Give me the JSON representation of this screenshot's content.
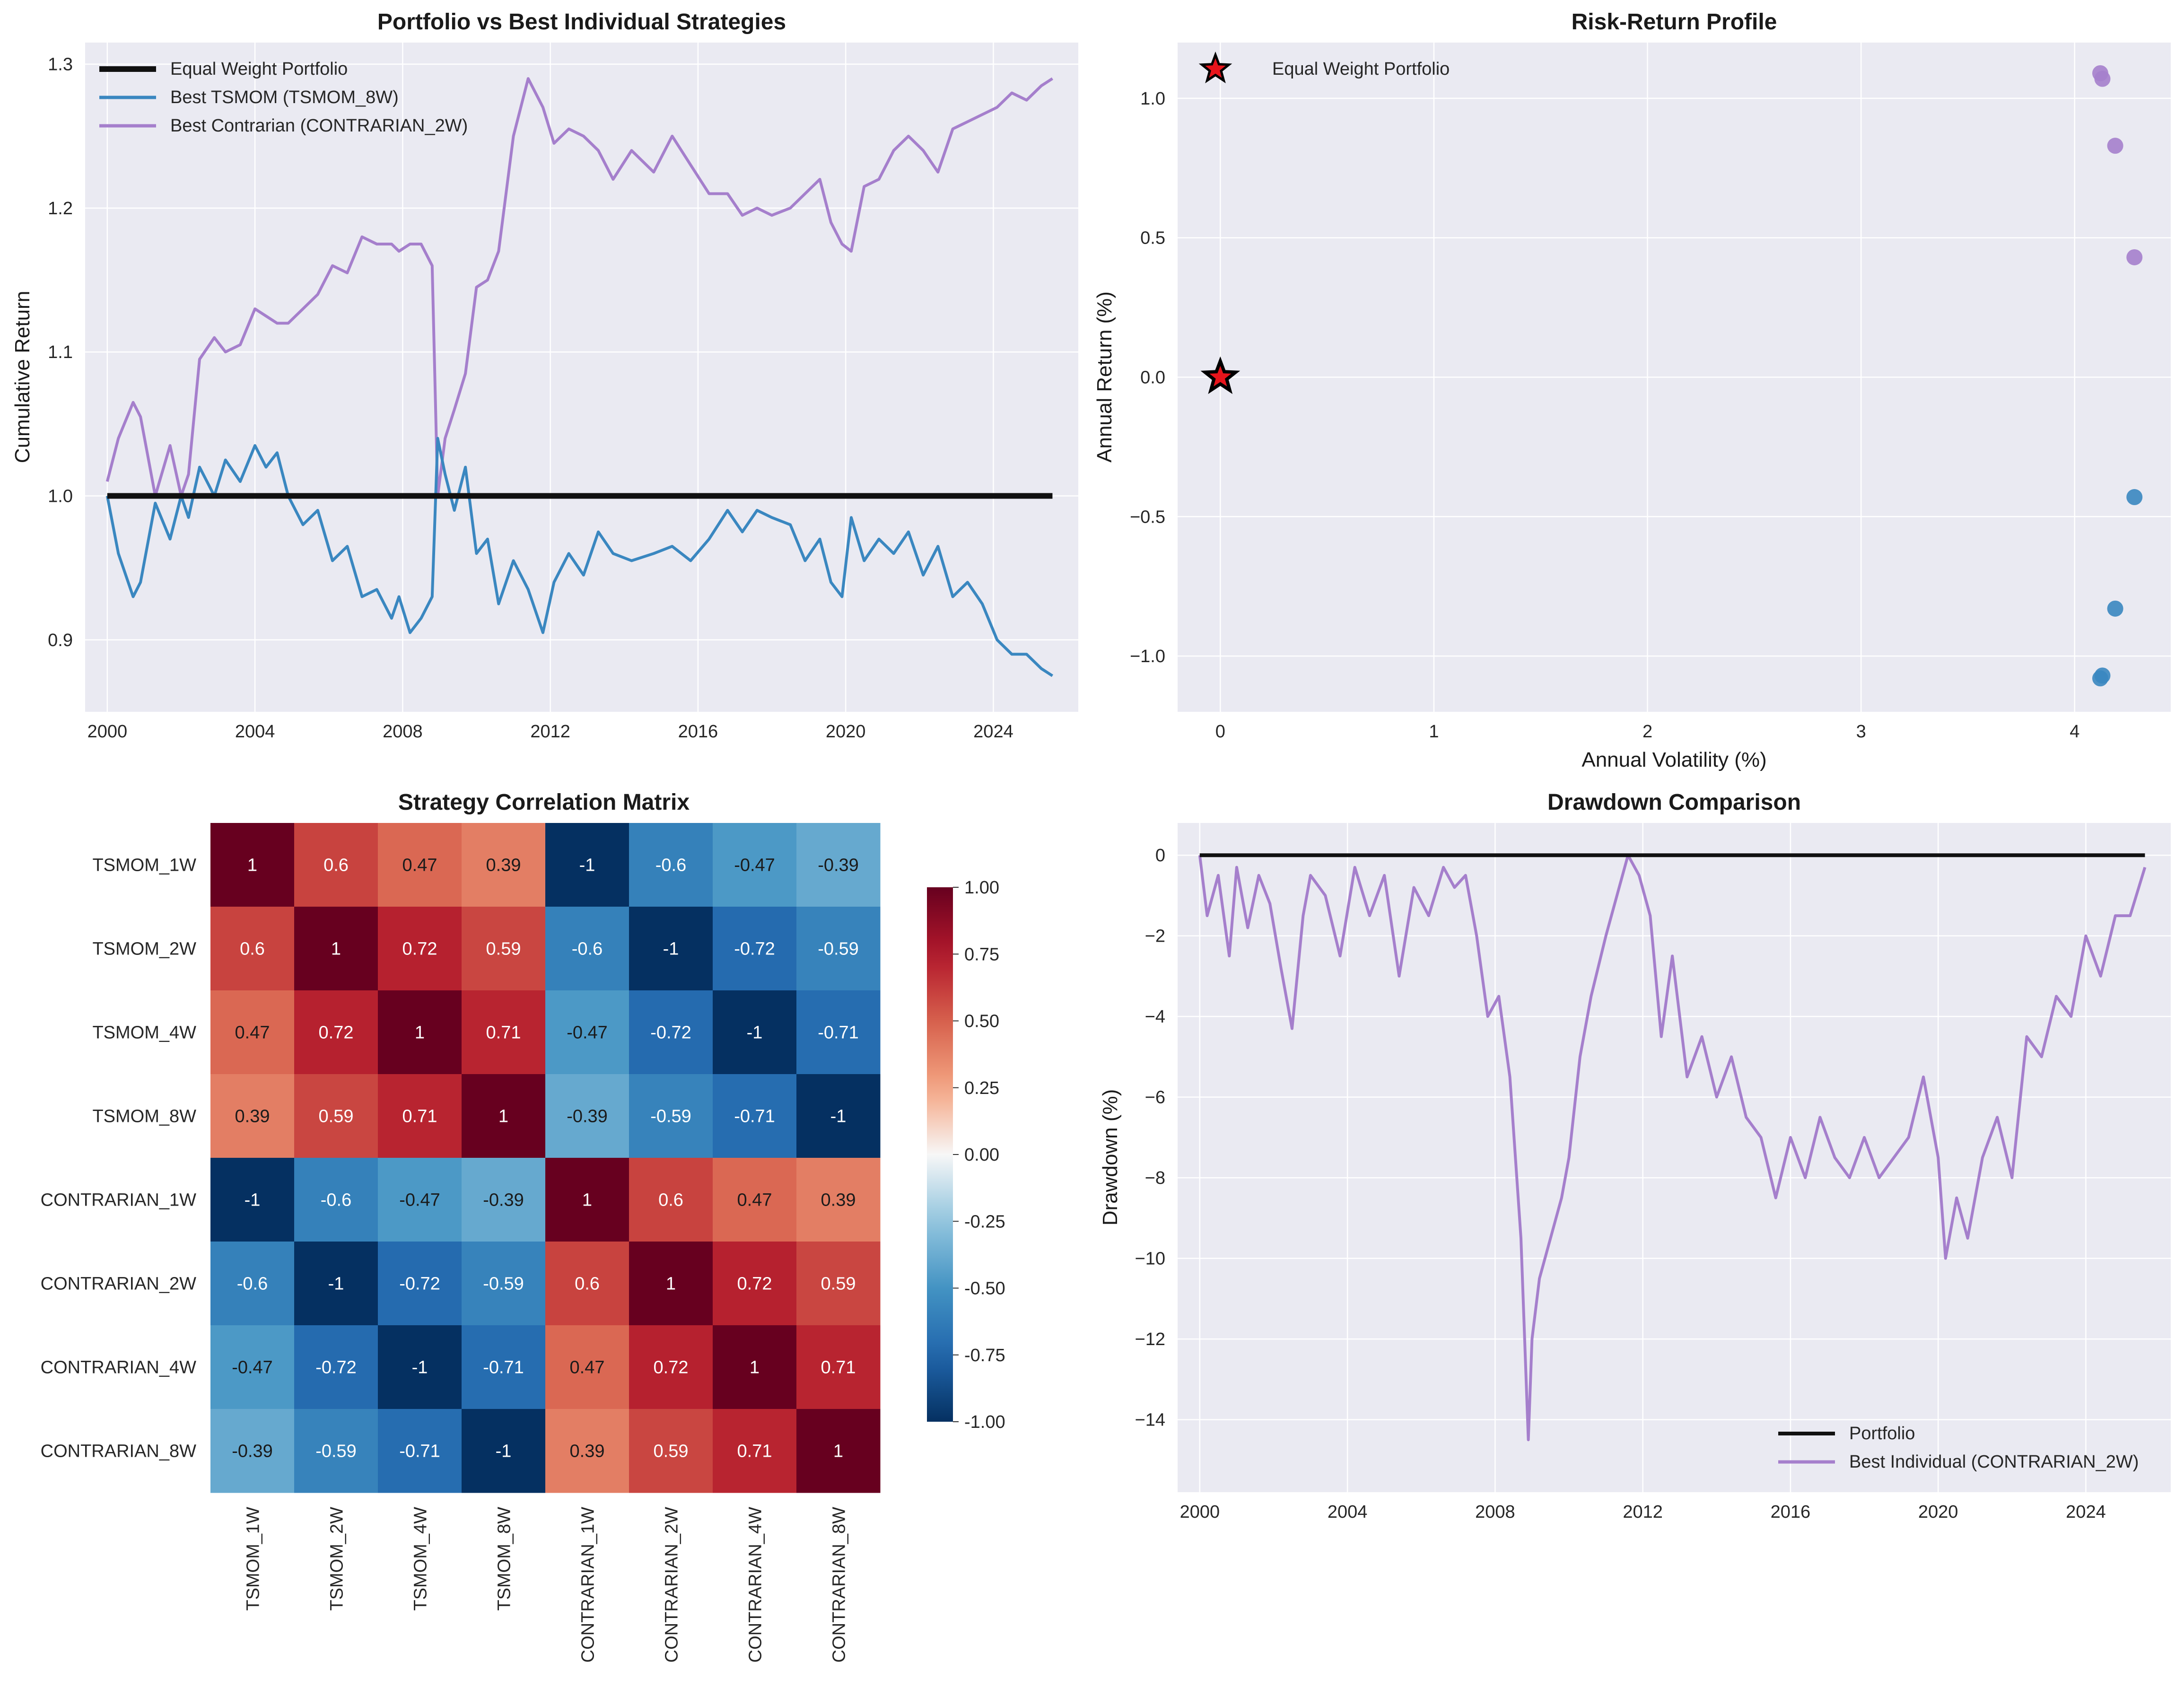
{
  "chart_data": [
    {
      "type": "line",
      "title": "Portfolio vs Best Individual Strategies",
      "xlabel": "",
      "ylabel": "Cumulative Return",
      "xlim": [
        1999.4,
        2026.3
      ],
      "ylim": [
        0.85,
        1.315
      ],
      "xticks": [
        2000,
        2004,
        2008,
        2012,
        2016,
        2020,
        2024
      ],
      "yticks": [
        0.9,
        1.0,
        1.1,
        1.2,
        1.3
      ],
      "grid": true,
      "legend_position": "upper-left",
      "series": [
        {
          "name": "Equal Weight Portfolio",
          "color": "#111111",
          "x": [
            2000.0,
            2025.6
          ],
          "y": [
            1.0,
            1.0
          ]
        },
        {
          "name": "Best TSMOM (TSMOM_8W)",
          "color": "#3a87c0",
          "x": [
            2000.0,
            2000.3,
            2000.7,
            2000.9,
            2001.3,
            2001.7,
            2002.0,
            2002.2,
            2002.5,
            2002.9,
            2003.2,
            2003.6,
            2004.0,
            2004.3,
            2004.6,
            2004.9,
            2005.3,
            2005.7,
            2006.1,
            2006.5,
            2006.9,
            2007.3,
            2007.7,
            2007.9,
            2008.2,
            2008.5,
            2008.8,
            2008.95,
            2009.15,
            2009.4,
            2009.7,
            2010.0,
            2010.3,
            2010.6,
            2011.0,
            2011.4,
            2011.8,
            2012.1,
            2012.5,
            2012.9,
            2013.3,
            2013.7,
            2014.2,
            2014.8,
            2015.3,
            2015.8,
            2016.3,
            2016.8,
            2017.2,
            2017.6,
            2018.0,
            2018.5,
            2018.9,
            2019.3,
            2019.6,
            2019.9,
            2020.15,
            2020.5,
            2020.9,
            2021.3,
            2021.7,
            2022.1,
            2022.5,
            2022.9,
            2023.3,
            2023.7,
            2024.1,
            2024.5,
            2024.9,
            2025.3,
            2025.6
          ],
          "y": [
            1.0,
            0.96,
            0.93,
            0.94,
            0.995,
            0.97,
            1.0,
            0.985,
            1.02,
            1.0,
            1.025,
            1.01,
            1.035,
            1.02,
            1.03,
            1.0,
            0.98,
            0.99,
            0.955,
            0.965,
            0.93,
            0.935,
            0.915,
            0.93,
            0.905,
            0.915,
            0.93,
            1.04,
            1.015,
            0.99,
            1.02,
            0.96,
            0.97,
            0.925,
            0.955,
            0.935,
            0.905,
            0.94,
            0.96,
            0.945,
            0.975,
            0.96,
            0.955,
            0.96,
            0.965,
            0.955,
            0.97,
            0.99,
            0.975,
            0.99,
            0.985,
            0.98,
            0.955,
            0.97,
            0.94,
            0.93,
            0.985,
            0.955,
            0.97,
            0.96,
            0.975,
            0.945,
            0.965,
            0.93,
            0.94,
            0.925,
            0.9,
            0.89,
            0.89,
            0.88,
            0.875
          ]
        },
        {
          "name": "Best Contrarian (CONTRARIAN_2W)",
          "color": "#a57fcc",
          "x": [
            2000.0,
            2000.3,
            2000.7,
            2000.9,
            2001.3,
            2001.7,
            2002.0,
            2002.2,
            2002.5,
            2002.9,
            2003.2,
            2003.6,
            2004.0,
            2004.3,
            2004.6,
            2004.9,
            2005.3,
            2005.7,
            2006.1,
            2006.5,
            2006.9,
            2007.3,
            2007.7,
            2007.9,
            2008.2,
            2008.5,
            2008.8,
            2008.95,
            2009.15,
            2009.4,
            2009.7,
            2010.0,
            2010.3,
            2010.6,
            2011.0,
            2011.4,
            2011.8,
            2012.1,
            2012.5,
            2012.9,
            2013.3,
            2013.7,
            2014.2,
            2014.8,
            2015.3,
            2015.8,
            2016.3,
            2016.8,
            2017.2,
            2017.6,
            2018.0,
            2018.5,
            2018.9,
            2019.3,
            2019.6,
            2019.9,
            2020.15,
            2020.5,
            2020.9,
            2021.3,
            2021.7,
            2022.1,
            2022.5,
            2022.9,
            2023.3,
            2023.7,
            2024.1,
            2024.5,
            2024.9,
            2025.3,
            2025.6
          ],
          "y": [
            1.01,
            1.04,
            1.065,
            1.055,
            1.0,
            1.035,
            1.0,
            1.015,
            1.095,
            1.11,
            1.1,
            1.105,
            1.13,
            1.125,
            1.12,
            1.12,
            1.13,
            1.14,
            1.16,
            1.155,
            1.18,
            1.175,
            1.175,
            1.17,
            1.175,
            1.175,
            1.16,
            1.0,
            1.04,
            1.06,
            1.085,
            1.145,
            1.15,
            1.17,
            1.25,
            1.29,
            1.27,
            1.245,
            1.255,
            1.25,
            1.24,
            1.22,
            1.24,
            1.225,
            1.25,
            1.23,
            1.21,
            1.21,
            1.195,
            1.2,
            1.195,
            1.2,
            1.21,
            1.22,
            1.19,
            1.175,
            1.17,
            1.215,
            1.22,
            1.24,
            1.25,
            1.24,
            1.225,
            1.255,
            1.26,
            1.265,
            1.27,
            1.28,
            1.275,
            1.285,
            1.29
          ]
        }
      ]
    },
    {
      "type": "scatter",
      "title": "Risk-Return Profile",
      "xlabel": "Annual Volatility (%)",
      "ylabel": "Annual Return (%)",
      "xlim": [
        -0.2,
        4.45
      ],
      "ylim": [
        -1.2,
        1.2
      ],
      "xticks": [
        0,
        1,
        2,
        3,
        4
      ],
      "yticks": [
        -1.0,
        -0.5,
        0.0,
        0.5,
        1.0
      ],
      "grid": true,
      "legend_position": "upper-left",
      "series": [
        {
          "name": "",
          "color": "#a57fcc",
          "marker": "circle",
          "x": [
            4.12,
            4.13,
            4.19,
            4.28
          ],
          "y": [
            1.09,
            1.07,
            0.83,
            0.43
          ]
        },
        {
          "name": "",
          "color": "#3a87c0",
          "marker": "circle",
          "x": [
            4.12,
            4.13,
            4.19,
            4.28
          ],
          "y": [
            -1.08,
            -1.07,
            -0.83,
            -0.43
          ]
        },
        {
          "name": "Equal Weight Portfolio",
          "color": "#e8141b",
          "marker": "star",
          "x": [
            0.0
          ],
          "y": [
            0.0
          ]
        }
      ]
    },
    {
      "type": "heatmap",
      "title": "Strategy Correlation Matrix",
      "rows": [
        "TSMOM_1W",
        "TSMOM_2W",
        "TSMOM_4W",
        "TSMOM_8W",
        "CONTRARIAN_1W",
        "CONTRARIAN_2W",
        "CONTRARIAN_4W",
        "CONTRARIAN_8W"
      ],
      "cols": [
        "TSMOM_1W",
        "TSMOM_2W",
        "TSMOM_4W",
        "TSMOM_8W",
        "CONTRARIAN_1W",
        "CONTRARIAN_2W",
        "CONTRARIAN_4W",
        "CONTRARIAN_8W"
      ],
      "values": [
        [
          1,
          0.6,
          0.47,
          0.39,
          -1,
          -0.6,
          -0.47,
          -0.39
        ],
        [
          0.6,
          1,
          0.72,
          0.59,
          -0.6,
          -1,
          -0.72,
          -0.59
        ],
        [
          0.47,
          0.72,
          1,
          0.71,
          -0.47,
          -0.72,
          -1,
          -0.71
        ],
        [
          0.39,
          0.59,
          0.71,
          1,
          -0.39,
          -0.59,
          -0.71,
          -1
        ],
        [
          -1,
          -0.6,
          -0.47,
          -0.39,
          1,
          0.6,
          0.47,
          0.39
        ],
        [
          -0.6,
          -1,
          -0.72,
          -0.59,
          0.6,
          1,
          0.72,
          0.59
        ],
        [
          -0.47,
          -0.72,
          -1,
          -0.71,
          0.47,
          0.72,
          1,
          0.71
        ],
        [
          -0.39,
          -0.59,
          -0.71,
          -1,
          0.39,
          0.59,
          0.71,
          1
        ]
      ],
      "colorbar": {
        "range": [
          -1.0,
          1.0
        ],
        "ticks": [
          "1.00",
          "0.75",
          "0.50",
          "0.25",
          "0.00",
          "-0.25",
          "-0.50",
          "-0.75",
          "-1.00"
        ],
        "colormap": "RdBu_r"
      }
    },
    {
      "type": "line",
      "title": "Drawdown Comparison",
      "xlabel": "",
      "ylabel": "Drawdown (%)",
      "xlim": [
        1999.4,
        2026.3
      ],
      "ylim": [
        -15.8,
        0.8
      ],
      "xticks": [
        2000,
        2004,
        2008,
        2012,
        2016,
        2020,
        2024
      ],
      "yticks": [
        0,
        -2,
        -4,
        -6,
        -8,
        -10,
        -12,
        -14
      ],
      "grid": true,
      "legend_position": "lower-right",
      "series": [
        {
          "name": "Portfolio",
          "color": "#111111",
          "x": [
            2000.0,
            2025.6
          ],
          "y": [
            0,
            0
          ]
        },
        {
          "name": "Best Individual (CONTRARIAN_2W)",
          "color": "#a57fcc",
          "x": [
            2000.0,
            2000.2,
            2000.5,
            2000.8,
            2001.0,
            2001.3,
            2001.6,
            2001.9,
            2002.2,
            2002.5,
            2002.8,
            2003.0,
            2003.4,
            2003.8,
            2004.2,
            2004.6,
            2005.0,
            2005.4,
            2005.8,
            2006.2,
            2006.6,
            2006.9,
            2007.2,
            2007.5,
            2007.8,
            2008.1,
            2008.4,
            2008.7,
            2008.9,
            2009.0,
            2009.2,
            2009.5,
            2009.8,
            2010.0,
            2010.3,
            2010.6,
            2011.0,
            2011.3,
            2011.6,
            2011.9,
            2012.2,
            2012.5,
            2012.8,
            2013.2,
            2013.6,
            2014.0,
            2014.4,
            2014.8,
            2015.2,
            2015.6,
            2016.0,
            2016.4,
            2016.8,
            2017.2,
            2017.6,
            2018.0,
            2018.4,
            2018.8,
            2019.2,
            2019.6,
            2020.0,
            2020.2,
            2020.5,
            2020.8,
            2021.2,
            2021.6,
            2022.0,
            2022.4,
            2022.8,
            2023.2,
            2023.6,
            2024.0,
            2024.4,
            2024.8,
            2025.2,
            2025.6
          ],
          "y": [
            0,
            -1.5,
            -0.5,
            -2.5,
            -0.3,
            -1.8,
            -0.5,
            -1.2,
            -2.8,
            -4.3,
            -1.5,
            -0.5,
            -1.0,
            -2.5,
            -0.3,
            -1.5,
            -0.5,
            -3.0,
            -0.8,
            -1.5,
            -0.3,
            -0.8,
            -0.5,
            -2.0,
            -4.0,
            -3.5,
            -5.5,
            -9.5,
            -14.5,
            -12.0,
            -10.5,
            -9.5,
            -8.5,
            -7.5,
            -5.0,
            -3.5,
            -2.0,
            -1.0,
            0,
            -0.5,
            -1.5,
            -4.5,
            -2.5,
            -5.5,
            -4.5,
            -6.0,
            -5.0,
            -6.5,
            -7.0,
            -8.5,
            -7.0,
            -8.0,
            -6.5,
            -7.5,
            -8.0,
            -7.0,
            -8.0,
            -7.5,
            -7.0,
            -5.5,
            -7.5,
            -10.0,
            -8.5,
            -9.5,
            -7.5,
            -6.5,
            -8.0,
            -4.5,
            -5.0,
            -3.5,
            -4.0,
            -2.0,
            -3.0,
            -1.5,
            -1.5,
            -0.3
          ]
        }
      ]
    }
  ]
}
